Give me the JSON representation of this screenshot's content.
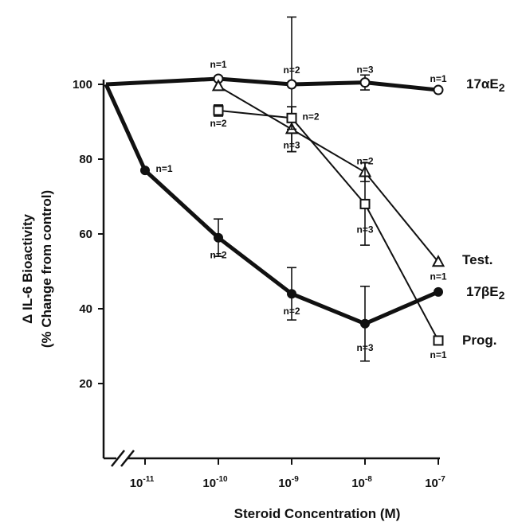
{
  "chart_data": {
    "type": "line",
    "xlabel": "Steroid Concentration (M)",
    "ylabel_line1": "Δ IL-6 Bioactivity",
    "ylabel_line2": "(% Change from control)",
    "x_ticks": [
      {
        "base": "10",
        "exp": "-11"
      },
      {
        "base": "10",
        "exp": "-10"
      },
      {
        "base": "10",
        "exp": "-9"
      },
      {
        "base": "10",
        "exp": "-8"
      },
      {
        "base": "10",
        "exp": "-7"
      }
    ],
    "x_log_values": [
      -11,
      -10,
      -9,
      -8,
      -7
    ],
    "y_ticks": [
      20,
      40,
      60,
      80,
      100
    ],
    "ylim": [
      0,
      120
    ],
    "x_scale": "log",
    "axis_break": "x-axis, between origin and 10^-11",
    "origin_value": 100,
    "series": [
      {
        "name_main": "17αE",
        "name_sub": "2",
        "marker": "open-circle",
        "line": "thick",
        "points": [
          {
            "x": -10,
            "y": 101.5,
            "n": "n=1",
            "err": 0
          },
          {
            "x": -9,
            "y": 100,
            "n": "n=2",
            "err": 18
          },
          {
            "x": -8,
            "y": 100.5,
            "n": "n=3",
            "err": 2
          },
          {
            "x": -7,
            "y": 98.5,
            "n": "n=1",
            "err": 0
          }
        ]
      },
      {
        "name_main": "17βE",
        "name_sub": "2",
        "marker": "filled-circle",
        "line": "thick",
        "points": [
          {
            "x": -11,
            "y": 77,
            "n": "n=1",
            "err": 0
          },
          {
            "x": -10,
            "y": 59,
            "n": "n=2",
            "err": 5
          },
          {
            "x": -9,
            "y": 44,
            "n": "n=2",
            "err": 7
          },
          {
            "x": -8,
            "y": 36,
            "n": "n=3",
            "err": 10
          },
          {
            "x": -7,
            "y": 44.5,
            "n": "",
            "err": 0
          }
        ]
      },
      {
        "name_main": "Test.",
        "name_sub": "",
        "marker": "open-triangle",
        "line": "thin",
        "points": [
          {
            "x": -10,
            "y": 99.5,
            "n": "",
            "err": 0
          },
          {
            "x": -9,
            "y": 88,
            "n": "n=3",
            "err": 6
          },
          {
            "x": -8,
            "y": 76.5,
            "n": "n=2",
            "err": 2.5
          },
          {
            "x": -7,
            "y": 52.5,
            "n": "n=1",
            "err": 0
          }
        ]
      },
      {
        "name_main": "Prog.",
        "name_sub": "",
        "marker": "open-square",
        "line": "thin",
        "points": [
          {
            "x": -10,
            "y": 93,
            "n": "n=2",
            "err": 1.5
          },
          {
            "x": -9,
            "y": 91,
            "n": "n=2",
            "err": 3
          },
          {
            "x": -8,
            "y": 68,
            "n": "n=3",
            "err": 11
          },
          {
            "x": -7,
            "y": 31.5,
            "n": "n=1",
            "err": 0
          }
        ]
      }
    ]
  }
}
